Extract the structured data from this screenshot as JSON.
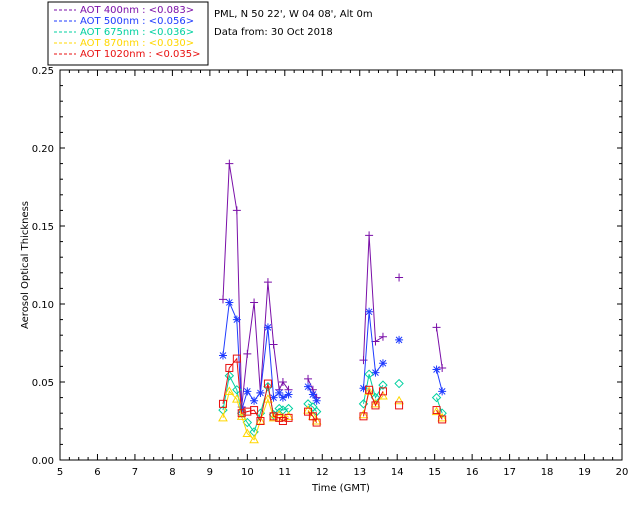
{
  "header": {
    "site": "PML, N 50 22', W 04 08', Alt 0m",
    "date": "Data from: 30 Oct 2018"
  },
  "chart_data": {
    "type": "line",
    "xlabel": "Time (GMT)",
    "ylabel": "Aerosol Optical Thickness",
    "xlim": [
      5,
      20
    ],
    "ylim": [
      0,
      0.25
    ],
    "xticks": [
      "5",
      "6",
      "7",
      "8",
      "9",
      "10",
      "11",
      "12",
      "13",
      "14",
      "15",
      "16",
      "17",
      "18",
      "19",
      "20"
    ],
    "yticks": [
      "0.00",
      "0.05",
      "0.10",
      "0.15",
      "0.20",
      "0.25"
    ],
    "legend_position": "top-left, outside plot",
    "series": [
      {
        "name": "AOT  400nm : <0.083>",
        "color": "#7a0fa8",
        "marker": "plus",
        "segments": [
          [
            [
              9.35,
              0.103
            ],
            [
              9.52,
              0.19
            ],
            [
              9.72,
              0.16
            ],
            [
              9.85,
              0.034
            ],
            [
              10.0,
              0.068
            ],
            [
              10.18,
              0.101
            ],
            [
              10.35,
              0.043
            ],
            [
              10.55,
              0.114
            ],
            [
              10.7,
              0.074
            ],
            [
              10.85,
              0.045
            ],
            [
              10.95,
              0.05
            ],
            [
              11.1,
              0.045
            ]
          ],
          [
            [
              11.62,
              0.052
            ],
            [
              11.75,
              0.045
            ],
            [
              11.85,
              0.04
            ]
          ],
          [
            [
              13.1,
              0.064
            ],
            [
              13.25,
              0.144
            ],
            [
              13.42,
              0.076
            ],
            [
              13.62,
              0.079
            ]
          ],
          [
            [
              14.05,
              0.117
            ]
          ],
          [
            [
              15.05,
              0.085
            ],
            [
              15.2,
              0.059
            ]
          ]
        ]
      },
      {
        "name": "AOT  500nm : <0.056>",
        "color": "#1f3bff",
        "marker": "asterisk",
        "segments": [
          [
            [
              9.35,
              0.067
            ],
            [
              9.52,
              0.101
            ],
            [
              9.72,
              0.09
            ],
            [
              9.85,
              0.032
            ],
            [
              10.0,
              0.044
            ],
            [
              10.18,
              0.038
            ],
            [
              10.35,
              0.043
            ],
            [
              10.55,
              0.085
            ],
            [
              10.7,
              0.04
            ],
            [
              10.85,
              0.043
            ],
            [
              10.95,
              0.04
            ],
            [
              11.1,
              0.042
            ]
          ],
          [
            [
              11.62,
              0.047
            ],
            [
              11.75,
              0.042
            ],
            [
              11.85,
              0.038
            ]
          ],
          [
            [
              13.1,
              0.046
            ],
            [
              13.25,
              0.095
            ],
            [
              13.42,
              0.056
            ],
            [
              13.62,
              0.062
            ]
          ],
          [
            [
              14.05,
              0.077
            ]
          ],
          [
            [
              15.05,
              0.058
            ],
            [
              15.2,
              0.044
            ]
          ]
        ]
      },
      {
        "name": "AOT  675nm : <0.036>",
        "color": "#00d0a0",
        "marker": "diamond",
        "segments": [
          [
            [
              9.35,
              0.032
            ],
            [
              9.52,
              0.054
            ],
            [
              9.72,
              0.045
            ],
            [
              9.85,
              0.03
            ],
            [
              10.0,
              0.024
            ],
            [
              10.18,
              0.018
            ],
            [
              10.35,
              0.03
            ],
            [
              10.55,
              0.047
            ],
            [
              10.7,
              0.029
            ],
            [
              10.85,
              0.033
            ],
            [
              10.95,
              0.032
            ],
            [
              11.1,
              0.033
            ]
          ],
          [
            [
              11.62,
              0.036
            ],
            [
              11.75,
              0.034
            ],
            [
              11.85,
              0.031
            ]
          ],
          [
            [
              13.1,
              0.036
            ],
            [
              13.25,
              0.055
            ],
            [
              13.42,
              0.04
            ],
            [
              13.62,
              0.048
            ]
          ],
          [
            [
              14.05,
              0.049
            ]
          ],
          [
            [
              15.05,
              0.04
            ],
            [
              15.2,
              0.03
            ]
          ]
        ]
      },
      {
        "name": "AOT  870nm : <0.030>",
        "color": "#ffd700",
        "marker": "triangle",
        "segments": [
          [
            [
              9.35,
              0.027
            ],
            [
              9.52,
              0.044
            ],
            [
              9.72,
              0.039
            ],
            [
              9.85,
              0.028
            ],
            [
              10.0,
              0.017
            ],
            [
              10.18,
              0.013
            ],
            [
              10.35,
              0.025
            ],
            [
              10.55,
              0.039
            ],
            [
              10.7,
              0.027
            ],
            [
              10.85,
              0.029
            ],
            [
              10.95,
              0.027
            ],
            [
              11.1,
              0.028
            ]
          ],
          [
            [
              11.62,
              0.032
            ],
            [
              11.75,
              0.028
            ],
            [
              11.85,
              0.025
            ]
          ],
          [
            [
              13.1,
              0.029
            ],
            [
              13.25,
              0.044
            ],
            [
              13.42,
              0.036
            ],
            [
              13.62,
              0.041
            ]
          ],
          [
            [
              14.05,
              0.038
            ]
          ],
          [
            [
              15.05,
              0.031
            ],
            [
              15.2,
              0.027
            ]
          ]
        ]
      },
      {
        "name": "AOT 1020nm : <0.035>",
        "color": "#e81010",
        "marker": "square",
        "segments": [
          [
            [
              9.35,
              0.036
            ],
            [
              9.52,
              0.059
            ],
            [
              9.72,
              0.065
            ],
            [
              9.85,
              0.03
            ],
            [
              10.0,
              0.031
            ],
            [
              10.18,
              0.032
            ],
            [
              10.35,
              0.025
            ],
            [
              10.55,
              0.049
            ],
            [
              10.7,
              0.028
            ],
            [
              10.85,
              0.027
            ],
            [
              10.95,
              0.025
            ],
            [
              11.1,
              0.027
            ]
          ],
          [
            [
              11.62,
              0.031
            ],
            [
              11.75,
              0.028
            ],
            [
              11.85,
              0.024
            ]
          ],
          [
            [
              13.1,
              0.028
            ],
            [
              13.25,
              0.045
            ],
            [
              13.42,
              0.035
            ],
            [
              13.62,
              0.044
            ]
          ],
          [
            [
              14.05,
              0.035
            ]
          ],
          [
            [
              15.05,
              0.032
            ],
            [
              15.2,
              0.026
            ]
          ]
        ]
      }
    ]
  }
}
